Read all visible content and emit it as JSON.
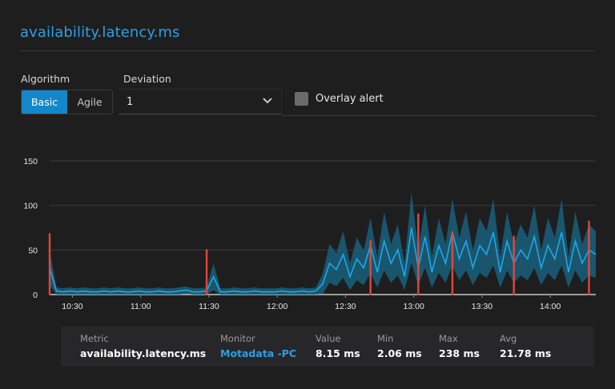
{
  "header": {
    "title": "availability.latency.ms"
  },
  "controls": {
    "algorithm_label": "Algorithm",
    "algorithm_options": [
      "Basic",
      "Agile"
    ],
    "algorithm_selected": "Basic",
    "deviation_label": "Deviation",
    "deviation_value": "1",
    "overlay_label": "Overlay alert",
    "overlay_checked": false
  },
  "colors": {
    "accent": "#2d9fe3",
    "active_button": "#1387c9",
    "series_line": "#1ea8e6",
    "band": "#1a5f7d",
    "anomaly": "#e0483a"
  },
  "chart_data": {
    "type": "line",
    "y_ticks": [
      0,
      50,
      100,
      150
    ],
    "ylim": [
      0,
      150
    ],
    "x_ticks": [
      "10:30",
      "11:00",
      "11:30",
      "12:00",
      "12:30",
      "13:00",
      "13:30",
      "14:00"
    ],
    "x_range": [
      "10:20",
      "14:20"
    ],
    "grid": true,
    "series": [
      {
        "x": [
          "10:20",
          "10:23",
          "10:26",
          "10:29",
          "10:32",
          "10:35",
          "10:38",
          "10:41",
          "10:44",
          "10:47",
          "10:50",
          "10:53",
          "10:56",
          "10:59",
          "11:02",
          "11:05",
          "11:08",
          "11:11",
          "11:14",
          "11:17",
          "11:20",
          "11:23",
          "11:26",
          "11:29",
          "11:32",
          "11:35",
          "11:38",
          "11:41",
          "11:44",
          "11:47",
          "11:50",
          "11:53",
          "11:56",
          "11:59",
          "12:02",
          "12:05",
          "12:08",
          "12:11",
          "12:14",
          "12:17",
          "12:20",
          "12:23",
          "12:26",
          "12:29",
          "12:32",
          "12:35",
          "12:38",
          "12:41",
          "12:44",
          "12:47",
          "12:50",
          "12:53",
          "12:56",
          "12:59",
          "13:02",
          "13:05",
          "13:08",
          "13:11",
          "13:14",
          "13:17",
          "13:20",
          "13:23",
          "13:26",
          "13:29",
          "13:32",
          "13:35",
          "13:38",
          "13:41",
          "13:44",
          "13:47",
          "13:50",
          "13:53",
          "13:56",
          "13:59",
          "14:02",
          "14:05",
          "14:08",
          "14:11",
          "14:14",
          "14:17",
          "14:20"
        ],
        "values": [
          30,
          4,
          3,
          4,
          3,
          4,
          3,
          3,
          4,
          3,
          4,
          3,
          3,
          4,
          3,
          3,
          4,
          3,
          3,
          4,
          5,
          3,
          3,
          4,
          20,
          3,
          3,
          4,
          3,
          3,
          4,
          3,
          3,
          3,
          4,
          3,
          3,
          4,
          3,
          4,
          12,
          35,
          28,
          45,
          20,
          40,
          30,
          55,
          25,
          60,
          35,
          50,
          20,
          75,
          30,
          65,
          25,
          55,
          35,
          70,
          40,
          60,
          30,
          55,
          45,
          70,
          25,
          60,
          35,
          50,
          40,
          65,
          30,
          55,
          40,
          70,
          25,
          60,
          35,
          50,
          45
        ]
      }
    ],
    "anomalies": [
      {
        "x": "10:20",
        "value": 68
      },
      {
        "x": "11:29",
        "value": 50
      },
      {
        "x": "12:41",
        "value": 60
      },
      {
        "x": "13:02",
        "value": 90
      },
      {
        "x": "13:17",
        "value": 70
      },
      {
        "x": "13:44",
        "value": 65
      },
      {
        "x": "14:17",
        "value": 82
      }
    ]
  },
  "summary": {
    "metric_label": "Metric",
    "metric_value": "availability.latency.ms",
    "monitor_label": "Monitor",
    "monitor_value": "Motadata -PC",
    "value_label": "Value",
    "value_value": "8.15 ms",
    "min_label": "Min",
    "min_value": "2.06 ms",
    "max_label": "Max",
    "max_value": "238 ms",
    "avg_label": "Avg",
    "avg_value": "21.78 ms"
  }
}
